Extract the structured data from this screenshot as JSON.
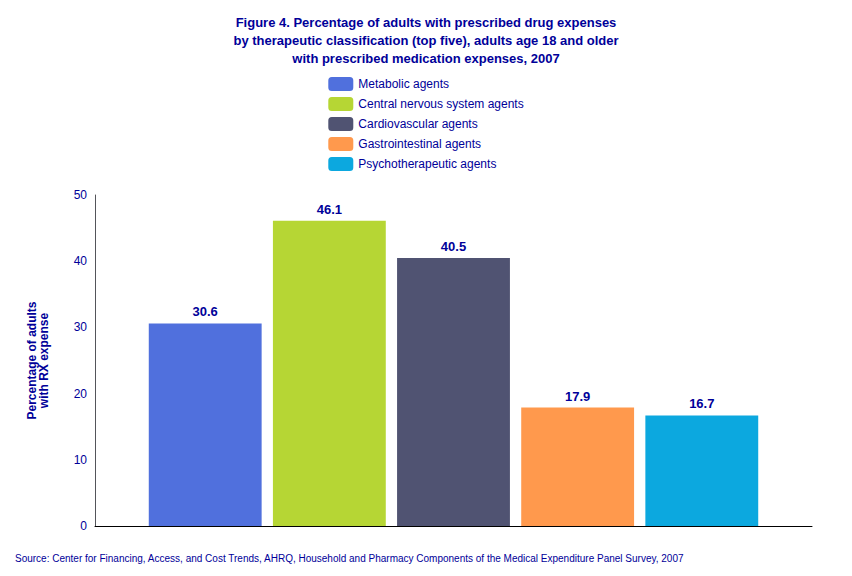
{
  "chart_data": {
    "type": "bar",
    "title": "Figure 4. Percentage of adults with prescribed drug expenses\nby therapeutic classification (top five), adults age 18 and older\nwith prescribed medication expenses, 2007",
    "ylabel": "Percentage of adults\nwith RX expense",
    "categories": [
      null
    ],
    "series": [
      {
        "name": "Metabolic agents",
        "values": [
          30.6
        ]
      },
      {
        "name": "Central nervous system agents",
        "values": [
          46.1
        ]
      },
      {
        "name": "Cardiovascular agents",
        "values": [
          40.5
        ]
      },
      {
        "name": "Gastrointestinal agents",
        "values": [
          17.9
        ]
      },
      {
        "name": "Psychotherapeutic agents",
        "values": [
          16.7
        ]
      }
    ],
    "ylim": [
      0,
      50
    ],
    "yticks": [
      0,
      10,
      20,
      30,
      40,
      50
    ],
    "grid": false,
    "legend": "top",
    "data_labels": true,
    "annotations": [
      "Source: Center for Financing, Access, and Cost Trends, AHRQ, Household and Pharmacy Components of the Medical Expenditure Panel Survey, 2007"
    ]
  }
}
